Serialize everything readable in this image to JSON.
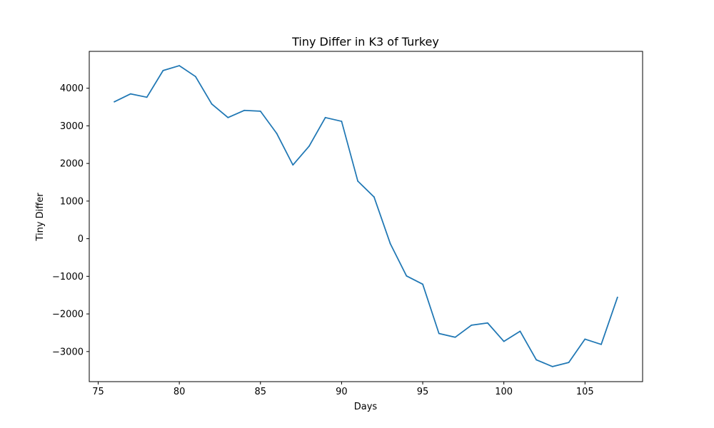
{
  "chart_data": {
    "type": "line",
    "title": "Tiny Differ in K3 of Turkey",
    "xlabel": "Days",
    "ylabel": "Tiny Differ",
    "xlim": [
      74.45,
      108.55
    ],
    "ylim": [
      -3800,
      4980
    ],
    "xticks": [
      75,
      80,
      85,
      90,
      95,
      100,
      105
    ],
    "yticks": [
      -3000,
      -2000,
      -1000,
      0,
      1000,
      2000,
      3000,
      4000
    ],
    "grid": false,
    "line_color": "#1f77b4",
    "x": [
      76,
      77,
      78,
      79,
      80,
      81,
      82,
      83,
      84,
      85,
      86,
      87,
      88,
      89,
      90,
      91,
      92,
      93,
      94,
      95,
      96,
      97,
      98,
      99,
      100,
      101,
      102,
      103,
      104,
      105,
      106,
      107
    ],
    "series": [
      {
        "values": [
          3640,
          3850,
          3760,
          4470,
          4600,
          4310,
          3580,
          3220,
          3410,
          3390,
          2800,
          1960,
          2460,
          3220,
          3120,
          1530,
          1110,
          -130,
          -990,
          -1210,
          -2520,
          -2620,
          -2300,
          -2240,
          -2730,
          -2460,
          -3220,
          -3400,
          -3290,
          -2670,
          -2810,
          -1560
        ]
      }
    ]
  }
}
